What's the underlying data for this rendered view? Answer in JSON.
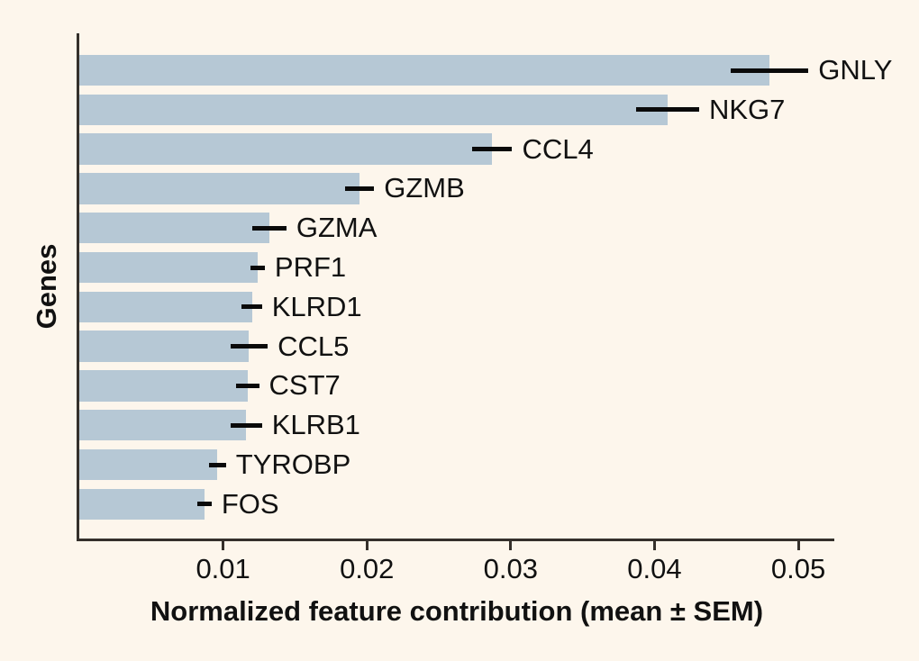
{
  "chart_data": {
    "type": "bar",
    "orientation": "horizontal",
    "title": "",
    "xlabel": "Normalized feature contribution (mean ± SEM)",
    "ylabel": "Genes",
    "categories": [
      "GNLY",
      "NKG7",
      "CCL4",
      "GZMB",
      "GZMA",
      "PRF1",
      "KLRD1",
      "CCL5",
      "CST7",
      "KLRB1",
      "TYROBP",
      "FOS"
    ],
    "values": [
      0.048,
      0.0409,
      0.0287,
      0.0195,
      0.0132,
      0.0124,
      0.012,
      0.0118,
      0.0117,
      0.0116,
      0.0096,
      0.0087
    ],
    "sem": [
      0.0027,
      0.0022,
      0.0014,
      0.001,
      0.0012,
      0.0005,
      0.0007,
      0.0013,
      0.0008,
      0.0011,
      0.0006,
      0.0005
    ],
    "error_bar_style": "horizontal line, no caps",
    "bar_labels_position": "right of error bar",
    "xlim": [
      0,
      0.0525
    ],
    "x_ticks": [
      0.01,
      0.02,
      0.03,
      0.04,
      0.05
    ],
    "x_tick_labels": [
      "0.01",
      "0.02",
      "0.03",
      "0.04",
      "0.05"
    ],
    "grid": false,
    "legend": null
  },
  "colors": {
    "background": "#fdf6ec",
    "bar": "#b6c8d5",
    "axis": "#35302b",
    "error_bar": "#0a0a0a",
    "text": "#111111"
  }
}
